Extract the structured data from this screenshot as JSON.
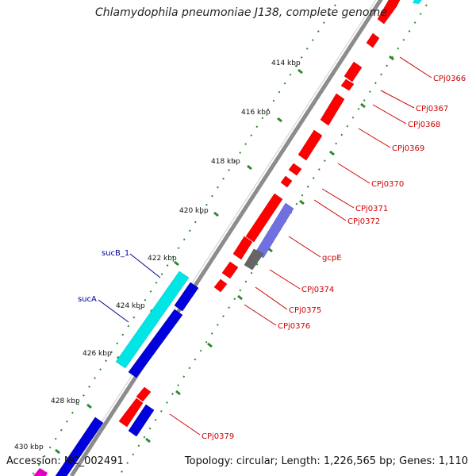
{
  "title": "Chlamydophila pneumoniae J138, complete genome",
  "accession": "Accession: NC_002491",
  "topology": "Topology: circular; Length: 1,226,565 bp; Genes: 1,110",
  "colors": {
    "backbone": "#8c8c8c",
    "forward_gene": "#ff0000",
    "reverse_gene": "#0000dd",
    "highlight_gene": "#00e5e5",
    "pseudo_gene": "#7070e0",
    "gray_gene": "#666666",
    "tick": "#2a8a2a",
    "label_red": "#cc0000",
    "label_blue": "#000099"
  },
  "kbp_labels": [
    "414 kbp",
    "416 kbp",
    "418 kbp",
    "420 kbp",
    "422 kbp",
    "424 kbp",
    "426 kbp",
    "428 kbp",
    "430 kbp"
  ],
  "gene_labels_right": [
    "CPj0366",
    "CPj0367",
    "CPj0368",
    "CPj0369",
    "CPj0370",
    "CPj0371",
    "CPj0372",
    "gcpE",
    "CPj0374",
    "CPj0375",
    "CPj0376",
    "CPj0379"
  ],
  "gene_labels_left": [
    "sucB_1",
    "sucA"
  ]
}
